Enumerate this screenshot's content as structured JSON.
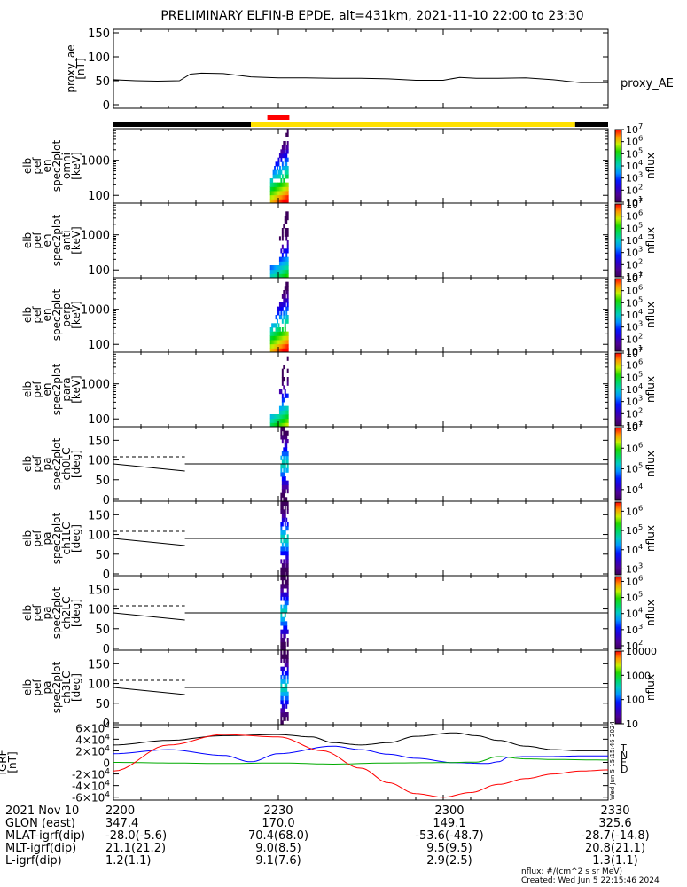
{
  "title": "PRELIMINARY ELFIN-B EPDE, alt=431km, 2021-11-10 22:00 to 23:30",
  "colors": {
    "orbit_dark": "#000000",
    "orbit_sun": "#ffe000",
    "science_zone": "#ff0000",
    "T": "#000000",
    "N": "#0000ff",
    "E": "#00aa00",
    "D": "#ff0000"
  },
  "chart_data": [
    {
      "type": "line",
      "id": "proxy_ae",
      "ylabel": [
        "proxy_ae",
        "[nT]"
      ],
      "ylim": [
        0,
        150
      ],
      "yticks": [
        0,
        50,
        100,
        150
      ],
      "legend": "proxy_AE",
      "x": [
        0,
        4,
        8,
        12,
        14,
        16,
        20,
        25,
        30,
        35,
        40,
        45,
        50,
        55,
        60,
        63,
        66,
        70,
        75,
        80,
        85,
        90
      ],
      "values": [
        52,
        50,
        49,
        50,
        64,
        66,
        65,
        58,
        56,
        56,
        55,
        55,
        54,
        51,
        51,
        57,
        55,
        55,
        56,
        52,
        46,
        46
      ]
    },
    {
      "type": "heatmap",
      "id": "omni",
      "ylabel": [
        "elb",
        "pef",
        "en",
        "spec2plot",
        "omni",
        "[keV]"
      ],
      "yscale": "log",
      "ylim": [
        60,
        8000
      ],
      "yticks": [
        "100",
        "1000"
      ],
      "zlabel": "nflux",
      "zticks": [
        "10^1",
        "10^2",
        "10^3",
        "10^4",
        "10^5",
        "10^6",
        "10^7"
      ],
      "zlim": [
        10,
        10000000.0
      ]
    },
    {
      "type": "heatmap",
      "id": "anti",
      "ylabel": [
        "elb",
        "pef",
        "en",
        "spec2plot",
        "anti",
        "[keV]"
      ],
      "yscale": "log",
      "ylim": [
        60,
        8000
      ],
      "yticks": [
        "100",
        "1000"
      ],
      "zlabel": "nflux",
      "zticks": [
        "10^1",
        "10^2",
        "10^3",
        "10^4",
        "10^5",
        "10^6",
        "10^7"
      ],
      "zlim": [
        10,
        10000000.0
      ]
    },
    {
      "type": "heatmap",
      "id": "perp",
      "ylabel": [
        "elb",
        "pef",
        "en",
        "spec2plot",
        "perp",
        "[keV]"
      ],
      "yscale": "log",
      "ylim": [
        60,
        8000
      ],
      "yticks": [
        "100",
        "1000"
      ],
      "zlabel": "nflux",
      "zticks": [
        "10^1",
        "10^2",
        "10^3",
        "10^4",
        "10^5",
        "10^6",
        "10^7"
      ],
      "zlim": [
        10,
        10000000.0
      ]
    },
    {
      "type": "heatmap",
      "id": "para",
      "ylabel": [
        "elb",
        "pef",
        "en",
        "spec2plot",
        "para",
        "[keV]"
      ],
      "yscale": "log",
      "ylim": [
        60,
        8000
      ],
      "yticks": [
        "100",
        "1000"
      ],
      "zlabel": "nflux",
      "zticks": [
        "10^1",
        "10^2",
        "10^3",
        "10^4",
        "10^5",
        "10^6",
        "10^7"
      ],
      "zlim": [
        10,
        10000000.0
      ]
    },
    {
      "type": "heatmap",
      "id": "ch0LC",
      "ylabel": [
        "elb",
        "pef",
        "pa",
        "spec2plot",
        "ch0LC",
        "[deg]"
      ],
      "ylim": [
        0,
        180
      ],
      "yticks": [
        "0",
        "50",
        "100",
        "150"
      ],
      "zlabel": "nflux",
      "zticks": [
        "10^4",
        "10^5",
        "10^6",
        "10^7"
      ],
      "zlim": [
        3000,
        10000000.0
      ],
      "lc_line": {
        "x": [
          0,
          13
        ],
        "y": [
          90,
          72
        ]
      },
      "alc_line": {
        "x": [
          0,
          13
        ],
        "y": [
          108,
          108
        ]
      },
      "ref_y": 90
    },
    {
      "type": "heatmap",
      "id": "ch1LC",
      "ylabel": [
        "elb",
        "pef",
        "pa",
        "spec2plot",
        "ch1LC",
        "[deg]"
      ],
      "ylim": [
        0,
        180
      ],
      "yticks": [
        "0",
        "50",
        "100",
        "150"
      ],
      "zlabel": "nflux",
      "zticks": [
        "10^3",
        "10^4",
        "10^5",
        "10^6"
      ],
      "zlim": [
        500,
        3000000.0
      ],
      "lc_line": {
        "x": [
          0,
          13
        ],
        "y": [
          90,
          72
        ]
      },
      "alc_line": {
        "x": [
          0,
          13
        ],
        "y": [
          108,
          108
        ]
      },
      "ref_y": 90
    },
    {
      "type": "heatmap",
      "id": "ch2LC",
      "ylabel": [
        "elb",
        "pef",
        "pa",
        "spec2plot",
        "ch2LC",
        "[deg]"
      ],
      "ylim": [
        0,
        180
      ],
      "yticks": [
        "0",
        "50",
        "100",
        "150"
      ],
      "zlabel": "nflux",
      "zticks": [
        "10^2",
        "10^3",
        "10^4",
        "10^5",
        "10^6"
      ],
      "zlim": [
        60,
        2000000.0
      ],
      "lc_line": {
        "x": [
          0,
          13
        ],
        "y": [
          90,
          72
        ]
      },
      "alc_line": {
        "x": [
          0,
          13
        ],
        "y": [
          108,
          108
        ]
      },
      "ref_y": 90
    },
    {
      "type": "heatmap",
      "id": "ch3LC",
      "ylabel": [
        "elb",
        "pef",
        "pa",
        "spec2plot",
        "ch3LC",
        "[deg]"
      ],
      "ylim": [
        0,
        180
      ],
      "yticks": [
        "0",
        "50",
        "100",
        "150"
      ],
      "zlabel": "nflux",
      "zticks": [
        "10",
        "100",
        "1000",
        "10000"
      ],
      "zlim": [
        10,
        10000
      ],
      "lc_line": {
        "x": [
          0,
          13
        ],
        "y": [
          90,
          72
        ]
      },
      "alc_line": {
        "x": [
          0,
          13
        ],
        "y": [
          108,
          108
        ]
      },
      "ref_y": 90
    },
    {
      "type": "line",
      "id": "igrf",
      "ylabel": [
        "IGRF",
        "[nT]"
      ],
      "ylim": [
        -65000,
        65000
      ],
      "yticks": [
        "-6×10^4",
        "-4×10^4",
        "-2×10^4",
        "0",
        "2×10^4",
        "4×10^4",
        "6×10^4"
      ],
      "yticks_vals": [
        -60000,
        -40000,
        -20000,
        0,
        20000,
        40000,
        60000
      ],
      "series": [
        {
          "name": "T",
          "x": [
            0,
            10,
            20,
            30,
            36,
            40,
            45,
            50,
            55,
            62,
            66,
            70,
            75,
            80,
            85,
            90
          ],
          "values": [
            30000,
            38000,
            46000,
            48000,
            44000,
            34000,
            30000,
            34000,
            45000,
            51000,
            46000,
            38000,
            28000,
            22000,
            20000,
            20000
          ]
        },
        {
          "name": "N",
          "x": [
            0,
            10,
            20,
            25,
            30,
            40,
            45,
            50,
            55,
            62,
            68,
            70,
            72,
            75,
            80,
            85,
            90
          ],
          "values": [
            15000,
            22000,
            12000,
            1000,
            15000,
            28000,
            22000,
            14000,
            7000,
            -500,
            -2000,
            1000,
            9000,
            10000,
            10000,
            11000,
            11000
          ]
        },
        {
          "name": "E",
          "x": [
            0,
            10,
            20,
            30,
            40,
            50,
            60,
            66,
            70,
            75,
            80,
            90
          ],
          "values": [
            0,
            -1000,
            -2000,
            -1000,
            -3000,
            -1000,
            -500,
            500,
            10000,
            6000,
            5000,
            4000
          ]
        },
        {
          "name": "D",
          "x": [
            0,
            10,
            20,
            30,
            38,
            45,
            50,
            55,
            60,
            65,
            70,
            75,
            80,
            85,
            90
          ],
          "values": [
            -15000,
            30000,
            48000,
            44000,
            20000,
            -10000,
            -35000,
            -54000,
            -60000,
            -52000,
            -38000,
            -28000,
            -20000,
            -15000,
            -13000
          ]
        }
      ]
    },
    {
      "type": "time_axis",
      "id": "time_axis",
      "x_range": [
        0,
        90
      ],
      "x": [
        0,
        30,
        60,
        90
      ],
      "labels": [
        "2200",
        "2230",
        "2300",
        "2330"
      ],
      "science_zone": [
        28,
        32
      ]
    }
  ],
  "footer": {
    "rows": [
      {
        "label": "2021 Nov 10",
        "values": [
          "2200",
          "2230",
          "2300",
          "2330"
        ]
      },
      {
        "label": "GLON (east)",
        "values": [
          "347.4",
          "170.0",
          "149.1",
          "325.6"
        ]
      },
      {
        "label": "MLAT-igrf(dip)",
        "values": [
          "-28.0(-5.6)",
          "70.4(68.0)",
          "-53.6(-48.7)",
          "-28.7(-14.8)"
        ]
      },
      {
        "label": "MLT-igrf(dip)",
        "values": [
          "21.1(21.2)",
          "9.0(8.5)",
          "9.5(9.5)",
          "20.8(21.1)"
        ]
      },
      {
        "label": "L-igrf(dip)",
        "values": [
          "1.2(1.1)",
          "9.1(7.6)",
          "2.9(2.5)",
          "1.3(1.1)"
        ]
      }
    ],
    "units_note": "nflux: #/(cm^2 s sr MeV)",
    "created": "Created: Wed Jun  5 22:15:46 2024",
    "side_stamp": "Wed Jun  5 15:15:46 2024"
  }
}
